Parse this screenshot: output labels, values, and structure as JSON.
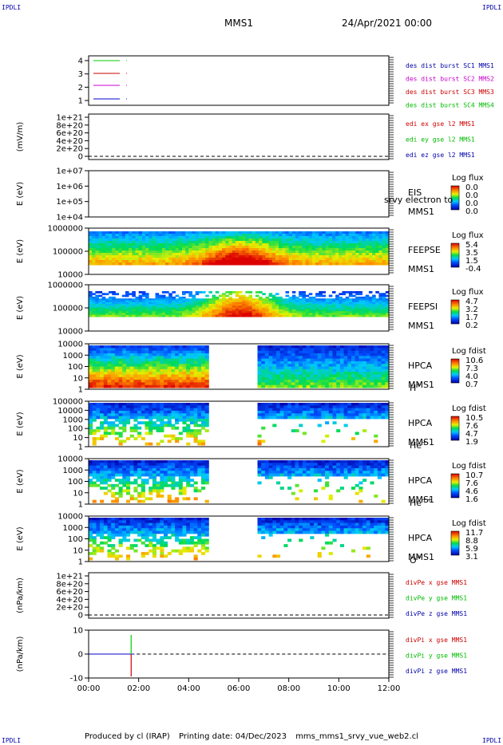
{
  "corner_label": "IPDLI",
  "header": {
    "mission": "MMS1",
    "date": "24/Apr/2021 00:00"
  },
  "footer": {
    "produced_by": "Produced by cl (IRAP)",
    "printing_date": "Printing date: 04/Dec/2023",
    "filename": "mms_mms1_srvy_vue_web2.cl"
  },
  "time_ticks": [
    "00:00",
    "02:00",
    "04:00",
    "06:00",
    "08:00",
    "10:00",
    "12:00"
  ],
  "panels": [
    {
      "name": "burst-panel",
      "ticks": [
        "4",
        "3",
        "2",
        "1"
      ],
      "right_labels": [
        {
          "text": "des dist burst SC1 MMS1",
          "color": "#0000aa"
        },
        {
          "text": "des dist burst SC2 MMS2",
          "color": "#cc00cc"
        },
        {
          "text": "des dist burst SC3 MMS3",
          "color": "#cc0000"
        },
        {
          "text": "des dist burst SC4 MMS4",
          "color": "#00bb00"
        }
      ],
      "legend_lines": [
        {
          "color": "#00cc00"
        },
        {
          "color": "#cc0000"
        },
        {
          "color": "#cc00cc"
        },
        {
          "color": "#0000cc"
        }
      ]
    },
    {
      "name": "edi-panel",
      "ylabel": "(mV/m)",
      "ticks": [
        "1e+21",
        "8e+20",
        "6e+20",
        "4e+20",
        "2e+20",
        "0"
      ],
      "right_labels": [
        {
          "text": "edi ex gse l2 MMS1",
          "color": "#cc0000"
        },
        {
          "text": "edi ey gse l2 MMS1",
          "color": "#00bb00"
        },
        {
          "text": "edi ez gse l2 MMS1",
          "color": "#0000aa"
        }
      ]
    },
    {
      "name": "eis-panel",
      "ylabel": "E (eV)",
      "ticks": [
        "1e+07",
        "1e+06",
        "1e+05",
        "1e+04"
      ],
      "labels": [
        "EIS",
        "MMS1"
      ],
      "overlay": "srvy electron to",
      "cbar": {
        "title": "Log flux",
        "ticks": [
          "0.0",
          "0.0",
          "0.0",
          "0.0"
        ]
      }
    },
    {
      "name": "feepse-panel",
      "ylabel": "E (eV)",
      "ticks": [
        "1000000",
        "100000",
        "10000"
      ],
      "labels": [
        "FEEPSE",
        "MMS1"
      ],
      "cbar": {
        "title": "Log flux",
        "ticks": [
          "5.4",
          "3.5",
          "1.5",
          "-0.4"
        ]
      }
    },
    {
      "name": "feepsi-panel",
      "ylabel": "E (eV)",
      "ticks": [
        "1000000",
        "100000",
        "10000"
      ],
      "labels": [
        "FEEPSI",
        "MMS1"
      ],
      "cbar": {
        "title": "Log flux",
        "ticks": [
          "4.7",
          "3.2",
          "1.7",
          "0.2"
        ]
      }
    },
    {
      "name": "hpca-h-panel",
      "ylabel": "E (eV)",
      "ticks": [
        "10000",
        "1000",
        "100",
        "10",
        "1"
      ],
      "labels": [
        "HPCA",
        "MMS1"
      ],
      "species": "H",
      "charge": "+",
      "cbar": {
        "title": "Log fdist",
        "ticks": [
          "10.6",
          "7.3",
          "4.0",
          "0.7"
        ]
      }
    },
    {
      "name": "hpca-he-panel",
      "ylabel": "E (eV)",
      "ticks": [
        "100000",
        "10000",
        "1000",
        "100",
        "10",
        "1"
      ],
      "labels": [
        "HPCA",
        "MMS1"
      ],
      "species": "He",
      "charge": "+",
      "cbar": {
        "title": "Log fdist",
        "ticks": [
          "10.5",
          "7.6",
          "4.7",
          "1.9"
        ]
      }
    },
    {
      "name": "hpca-he2-panel",
      "ylabel": "E (eV)",
      "ticks": [
        "10000",
        "1000",
        "100",
        "10",
        "1"
      ],
      "labels": [
        "HPCA",
        "MMS1"
      ],
      "species": "He",
      "charge": "++",
      "cbar": {
        "title": "Log fdist",
        "ticks": [
          "10.7",
          "7.6",
          "4.6",
          "1.6"
        ]
      }
    },
    {
      "name": "hpca-o-panel",
      "ylabel": "E (eV)",
      "ticks": [
        "10000",
        "1000",
        "100",
        "10",
        "1"
      ],
      "labels": [
        "HPCA",
        "MMS1"
      ],
      "species": "O",
      "charge": "+",
      "cbar": {
        "title": "Log fdist",
        "ticks": [
          "11.7",
          "8.8",
          "5.9",
          "3.1"
        ]
      }
    },
    {
      "name": "divpe-panel",
      "ylabel": "(nPa/km)",
      "ticks": [
        "1e+21",
        "8e+20",
        "6e+20",
        "4e+20",
        "2e+20",
        "0"
      ],
      "right_labels": [
        {
          "text": "divPe x gse MMS1",
          "color": "#cc0000"
        },
        {
          "text": "divPe y gse MMS1",
          "color": "#00bb00"
        },
        {
          "text": "divPe z gse MMS1",
          "color": "#0000aa"
        }
      ]
    },
    {
      "name": "divpi-panel",
      "ylabel": "(nPa/km)",
      "ticks": [
        "10",
        "0",
        "-10"
      ],
      "right_labels": [
        {
          "text": "divPi x gse MMS1",
          "color": "#cc0000"
        },
        {
          "text": "divPi y gse MMS1",
          "color": "#00bb00"
        },
        {
          "text": "divPi z gse MMS1",
          "color": "#0000aa"
        }
      ]
    }
  ],
  "chart_data": {
    "type": "heatmap",
    "title": "MMS1 24/Apr/2021 00:00",
    "x_range_hours": [
      0,
      12
    ],
    "hpca_data_gap_hours": [
      4.8,
      6.7
    ],
    "divpi_spike": {
      "t_hours": 1.7,
      "y_max": 12,
      "y_min": -14
    },
    "divpi_ylim": [
      -15,
      15
    ]
  }
}
